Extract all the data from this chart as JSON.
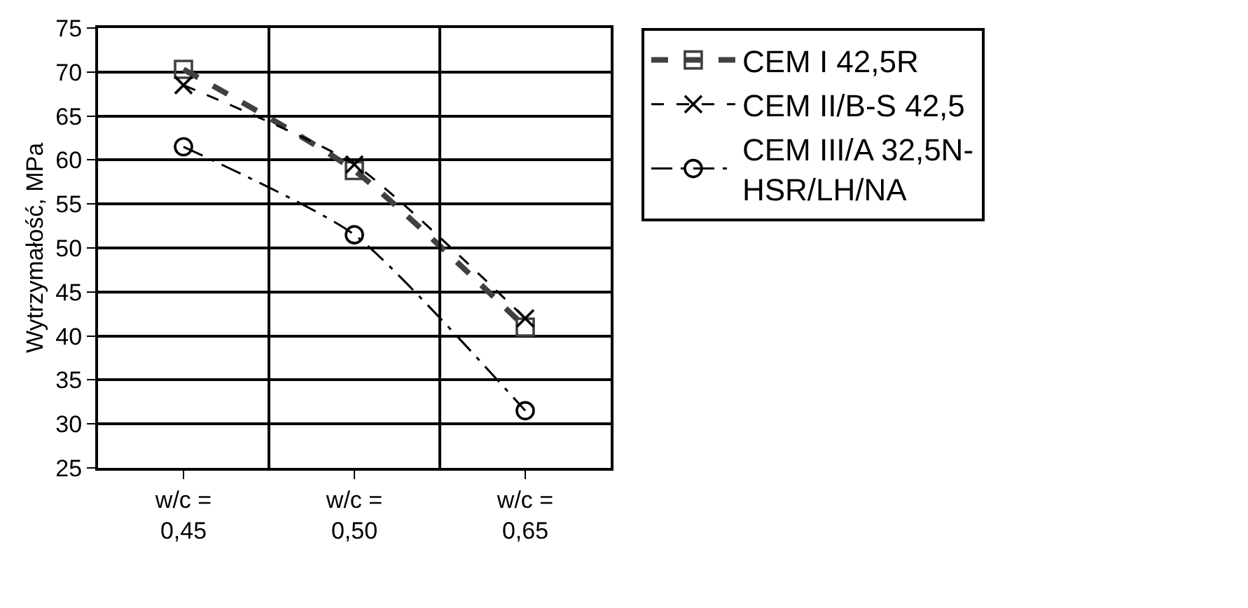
{
  "chart_data": {
    "type": "line",
    "ylabel": "Wytrzymałość, MPa",
    "categories": [
      "w/c = 0,45",
      "w/c = 0,50",
      "w/c = 0,65"
    ],
    "series": [
      {
        "name": "CEM I 42,5R",
        "color": "#404040",
        "values": [
          70.3,
          58.8,
          41.0
        ],
        "marker": "square",
        "line_style": "dashed"
      },
      {
        "name": "CEM II/B-S 42,5",
        "color": "#000000",
        "values": [
          68.5,
          59.5,
          42.0
        ],
        "marker": "cross",
        "line_style": "dashed"
      },
      {
        "name": "CEM III/A 32,5N-HSR/LH/NA",
        "color": "#000000",
        "values": [
          61.5,
          51.5,
          31.5
        ],
        "marker": "circle",
        "line_style": "dashdot"
      }
    ],
    "ylim": [
      25,
      75
    ],
    "yticks": [
      25,
      30,
      35,
      40,
      45,
      50,
      55,
      60,
      65,
      70,
      75
    ],
    "grid": true,
    "legend": "right"
  }
}
